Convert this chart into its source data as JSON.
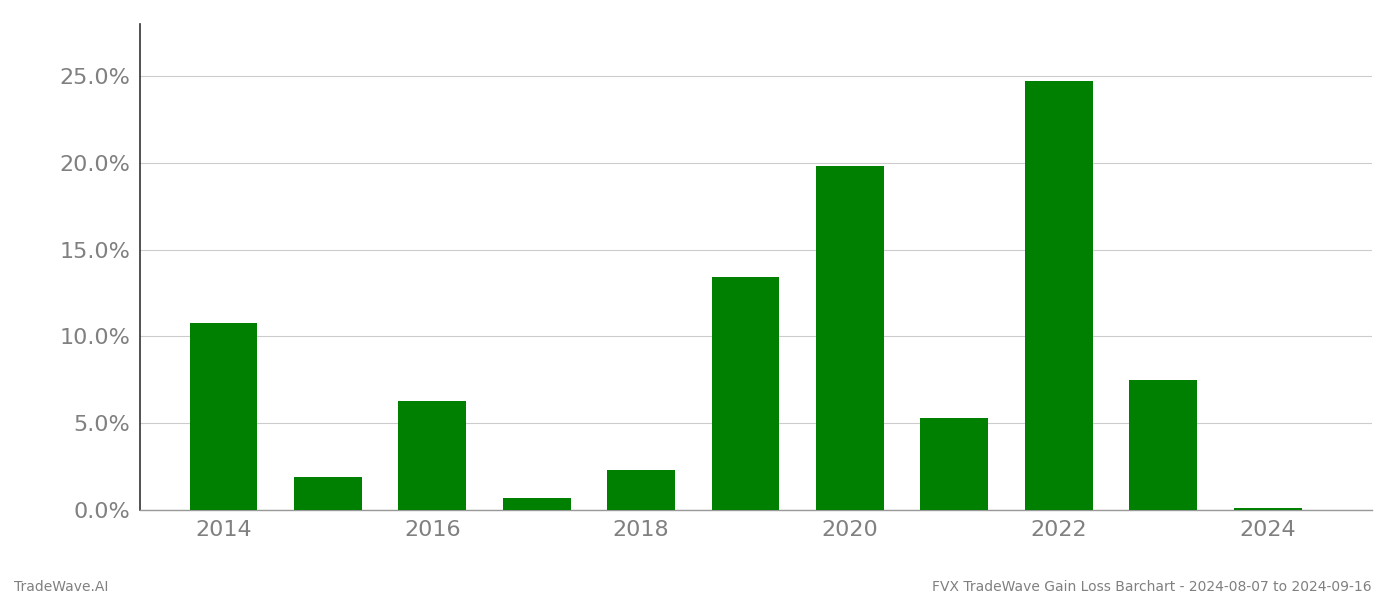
{
  "years": [
    2014,
    2015,
    2016,
    2017,
    2018,
    2019,
    2020,
    2021,
    2022,
    2023,
    2024
  ],
  "values": [
    0.108,
    0.019,
    0.063,
    0.007,
    0.023,
    0.134,
    0.198,
    0.053,
    0.247,
    0.075,
    0.001
  ],
  "bar_color": "#008000",
  "background_color": "#ffffff",
  "title": "FVX TradeWave Gain Loss Barchart - 2024-08-07 to 2024-09-16",
  "watermark": "TradeWave.AI",
  "ylim": [
    0,
    0.28
  ],
  "yticks": [
    0.0,
    0.05,
    0.1,
    0.15,
    0.2,
    0.25
  ],
  "ytick_labels": [
    "0.0%",
    "5.0%",
    "10.0%",
    "15.0%",
    "20.0%",
    "25.0%"
  ],
  "xticks": [
    2014,
    2016,
    2018,
    2020,
    2022,
    2024
  ],
  "xtick_labels": [
    "2014",
    "2016",
    "2018",
    "2020",
    "2022",
    "2024"
  ],
  "xlim": [
    2013.2,
    2025.0
  ],
  "title_fontsize": 10,
  "watermark_fontsize": 10,
  "tick_label_color": "#808080",
  "grid_color": "#cccccc",
  "bar_width": 0.65,
  "ytick_fontsize": 16,
  "xtick_fontsize": 16
}
